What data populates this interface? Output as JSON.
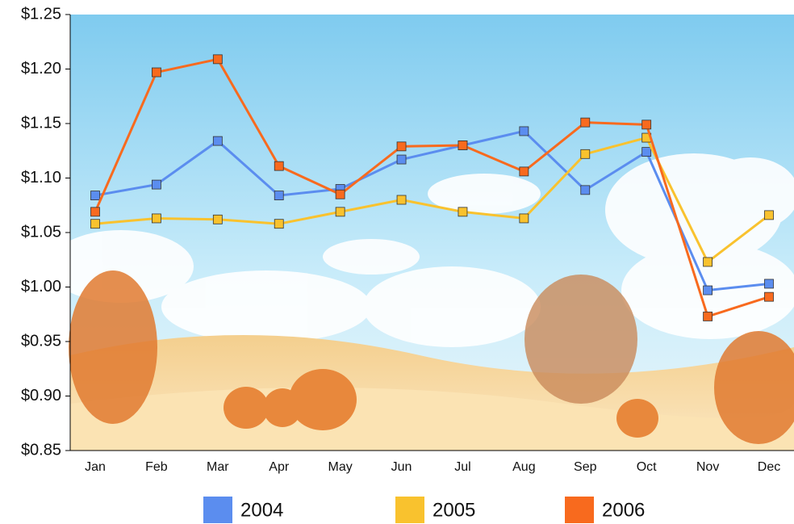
{
  "chart_data": {
    "type": "line",
    "categories": [
      "Jan",
      "Feb",
      "Mar",
      "Apr",
      "May",
      "Jun",
      "Jul",
      "Aug",
      "Sep",
      "Oct",
      "Nov",
      "Dec"
    ],
    "series": [
      {
        "name": "2004",
        "color": "#5b8def",
        "values": [
          1.084,
          1.094,
          1.134,
          1.084,
          1.09,
          1.117,
          1.13,
          1.143,
          1.089,
          1.124,
          0.997,
          1.003
        ]
      },
      {
        "name": "2005",
        "color": "#f9c22e",
        "values": [
          1.058,
          1.063,
          1.062,
          1.058,
          1.069,
          1.08,
          1.069,
          1.063,
          1.122,
          1.137,
          1.023,
          1.066
        ]
      },
      {
        "name": "2006",
        "color": "#f86a1e",
        "values": [
          1.069,
          1.197,
          1.209,
          1.111,
          1.085,
          1.129,
          1.13,
          1.106,
          1.151,
          1.149,
          0.973,
          0.991
        ]
      }
    ],
    "ylim": [
      0.85,
      1.25
    ],
    "yticks": [
      {
        "value": 0.85,
        "label": "$0.85"
      },
      {
        "value": 0.9,
        "label": "$0.90"
      },
      {
        "value": 0.95,
        "label": "$0.95"
      },
      {
        "value": 1.0,
        "label": "$1.00"
      },
      {
        "value": 1.05,
        "label": "$1.05"
      },
      {
        "value": 1.1,
        "label": "$1.10"
      },
      {
        "value": 1.15,
        "label": "$1.15"
      },
      {
        "value": 1.2,
        "label": "$1.20"
      },
      {
        "value": 1.25,
        "label": "$1.25"
      }
    ],
    "legend": "bottom"
  }
}
